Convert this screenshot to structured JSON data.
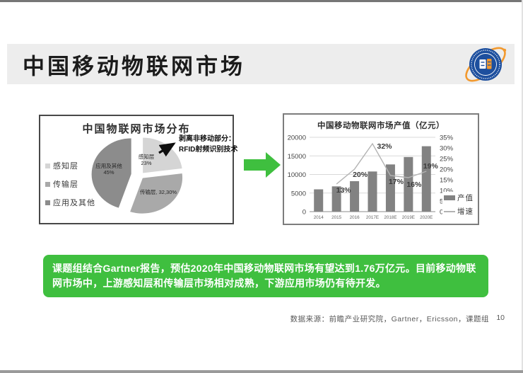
{
  "page": {
    "title": "中国移动物联网市场",
    "insight": "课题组结合Gartner报告，预估2020年中国移动物联网市场有望达到1.76万亿元。目前移动物联网市场中，上游感知层和传输层市场相对成熟，下游应用市场仍有待开发。",
    "source": "数据来源：前瞻产业研究院，Gartner，Ericsson，课题组",
    "page_number": "10"
  },
  "logo": {
    "ring_text": "管理学院 SCHOOL OF MANAGEMENT · FUDAN UNIVERSITY"
  },
  "colors": {
    "accent_green": "#3fbf3f",
    "bar_fill": "#828282",
    "line_stroke": "#b3b3b3",
    "grid_line": "#d9d9d9",
    "pie_colors": [
      "#d5d5d5",
      "#a9a9a9",
      "#8c8c8c"
    ],
    "logo_blue": "#1d4f9e",
    "logo_orange": "#f2992e"
  },
  "chart_data": [
    {
      "type": "pie",
      "title": "中国物联网市场分布",
      "legend": [
        "感知层",
        "传输层",
        "应用及其他"
      ],
      "slices": [
        {
          "name": "感知层",
          "value": 23,
          "label_lines": [
            "感知层",
            "23%"
          ]
        },
        {
          "name": "传输层",
          "value": 32.3,
          "label_lines": [
            "传输层, 32,30%"
          ]
        },
        {
          "name": "应用及其他",
          "value": 45,
          "label_lines": [
            "应用及其他",
            "45%"
          ],
          "exploded": true
        }
      ],
      "annotation": {
        "line1": "剥离非移动部分：",
        "line2": "RFID射频识别技术"
      }
    },
    {
      "type": "bar+line",
      "title": "中国移动物联网市场产值（亿元）",
      "categories": [
        "2014",
        "2015",
        "2016",
        "2017E",
        "2018E",
        "2019E",
        "2020E"
      ],
      "series": [
        {
          "name": "产值",
          "type": "bar",
          "axis": "left",
          "values": [
            6000,
            6800,
            8200,
            10800,
            12700,
            14700,
            17600
          ]
        },
        {
          "name": "增速",
          "type": "line",
          "axis": "right",
          "values": [
            null,
            13,
            20,
            32,
            17,
            16,
            19
          ],
          "point_labels": [
            "",
            "13%",
            "20%",
            "32%",
            "17%",
            "16%",
            "19%"
          ]
        }
      ],
      "left_axis": {
        "min": 0,
        "max": 20000,
        "ticks": [
          "0",
          "5000",
          "10000",
          "15000",
          "20000"
        ]
      },
      "right_axis": {
        "min": 0,
        "max": 35,
        "ticks": [
          "0%",
          "5%",
          "10%",
          "15%",
          "20%",
          "25%",
          "30%",
          "35%"
        ]
      },
      "legend": [
        "产值",
        "增速"
      ],
      "legend_position": "bottom-right"
    }
  ]
}
